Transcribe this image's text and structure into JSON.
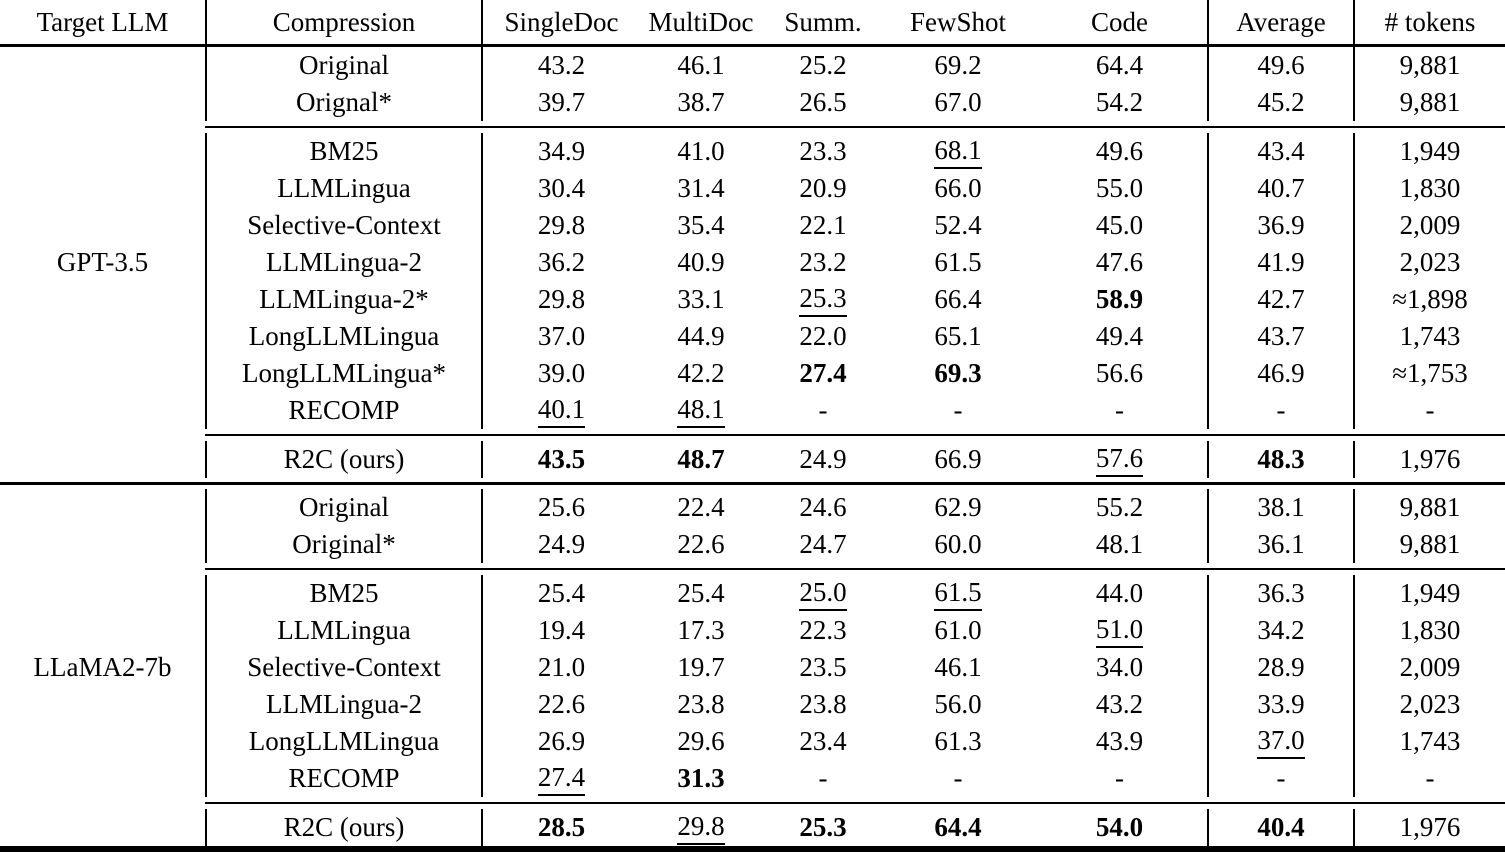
{
  "table": {
    "columns": [
      "Target LLM",
      "Compression",
      "SingleDoc",
      "MultiDoc",
      "Summ.",
      "FewShot",
      "Code",
      "Average",
      "# tokens"
    ],
    "sections": [
      {
        "target_llm": "GPT-3.5",
        "groups": [
          {
            "rows": [
              {
                "method": "Original",
                "values": [
                  "43.2",
                  "46.1",
                  "25.2",
                  "69.2",
                  "64.4",
                  "49.6",
                  "9,881"
                ],
                "styles": {}
              },
              {
                "method": "Orignal*",
                "values": [
                  "39.7",
                  "38.7",
                  "26.5",
                  "67.0",
                  "54.2",
                  "45.2",
                  "9,881"
                ],
                "styles": {}
              }
            ]
          },
          {
            "rows": [
              {
                "method": "BM25",
                "values": [
                  "34.9",
                  "41.0",
                  "23.3",
                  "68.1",
                  "49.6",
                  "43.4",
                  "1,949"
                ],
                "styles": {
                  "3": "u"
                }
              },
              {
                "method": "LLMLingua",
                "values": [
                  "30.4",
                  "31.4",
                  "20.9",
                  "66.0",
                  "55.0",
                  "40.7",
                  "1,830"
                ],
                "styles": {}
              },
              {
                "method": "Selective-Context",
                "values": [
                  "29.8",
                  "35.4",
                  "22.1",
                  "52.4",
                  "45.0",
                  "36.9",
                  "2,009"
                ],
                "styles": {}
              },
              {
                "method": "LLMLingua-2",
                "values": [
                  "36.2",
                  "40.9",
                  "23.2",
                  "61.5",
                  "47.6",
                  "41.9",
                  "2,023"
                ],
                "styles": {}
              },
              {
                "method": "LLMLingua-2*",
                "values": [
                  "29.8",
                  "33.1",
                  "25.3",
                  "66.4",
                  "58.9",
                  "42.7",
                  "≈1,898"
                ],
                "styles": {
                  "2": "u",
                  "4": "b"
                }
              },
              {
                "method": "LongLLMLingua",
                "values": [
                  "37.0",
                  "44.9",
                  "22.0",
                  "65.1",
                  "49.4",
                  "43.7",
                  "1,743"
                ],
                "styles": {}
              },
              {
                "method": "LongLLMLingua*",
                "values": [
                  "39.0",
                  "42.2",
                  "27.4",
                  "69.3",
                  "56.6",
                  "46.9",
                  "≈1,753"
                ],
                "styles": {
                  "2": "b",
                  "3": "b"
                }
              },
              {
                "method": "RECOMP",
                "values": [
                  "40.1",
                  "48.1",
                  "-",
                  "-",
                  "-",
                  "-",
                  "-"
                ],
                "styles": {
                  "0": "u",
                  "1": "u"
                }
              }
            ]
          },
          {
            "rows": [
              {
                "method": "R2C (ours)",
                "values": [
                  "43.5",
                  "48.7",
                  "24.9",
                  "66.9",
                  "57.6",
                  "48.3",
                  "1,976"
                ],
                "styles": {
                  "0": "b",
                  "1": "b",
                  "4": "u",
                  "5": "b"
                }
              }
            ]
          }
        ]
      },
      {
        "target_llm": "LLaMA2-7b",
        "groups": [
          {
            "rows": [
              {
                "method": "Original",
                "values": [
                  "25.6",
                  "22.4",
                  "24.6",
                  "62.9",
                  "55.2",
                  "38.1",
                  "9,881"
                ],
                "styles": {}
              },
              {
                "method": "Original*",
                "values": [
                  "24.9",
                  "22.6",
                  "24.7",
                  "60.0",
                  "48.1",
                  "36.1",
                  "9,881"
                ],
                "styles": {}
              }
            ]
          },
          {
            "rows": [
              {
                "method": "BM25",
                "values": [
                  "25.4",
                  "25.4",
                  "25.0",
                  "61.5",
                  "44.0",
                  "36.3",
                  "1,949"
                ],
                "styles": {
                  "2": "u",
                  "3": "u"
                }
              },
              {
                "method": "LLMLingua",
                "values": [
                  "19.4",
                  "17.3",
                  "22.3",
                  "61.0",
                  "51.0",
                  "34.2",
                  "1,830"
                ],
                "styles": {
                  "4": "u"
                }
              },
              {
                "method": "Selective-Context",
                "values": [
                  "21.0",
                  "19.7",
                  "23.5",
                  "46.1",
                  "34.0",
                  "28.9",
                  "2,009"
                ],
                "styles": {}
              },
              {
                "method": "LLMLingua-2",
                "values": [
                  "22.6",
                  "23.8",
                  "23.8",
                  "56.0",
                  "43.2",
                  "33.9",
                  "2,023"
                ],
                "styles": {}
              },
              {
                "method": "LongLLMLingua",
                "values": [
                  "26.9",
                  "29.6",
                  "23.4",
                  "61.3",
                  "43.9",
                  "37.0",
                  "1,743"
                ],
                "styles": {
                  "5": "u"
                }
              },
              {
                "method": "RECOMP",
                "values": [
                  "27.4",
                  "31.3",
                  "-",
                  "-",
                  "-",
                  "-",
                  "-"
                ],
                "styles": {
                  "0": "u",
                  "1": "b"
                }
              }
            ]
          },
          {
            "rows": [
              {
                "method": "R2C (ours)",
                "values": [
                  "28.5",
                  "29.8",
                  "25.3",
                  "64.4",
                  "54.0",
                  "40.4",
                  "1,976"
                ],
                "styles": {
                  "0": "b",
                  "1": "u",
                  "2": "b",
                  "3": "b",
                  "4": "b",
                  "5": "b"
                }
              }
            ]
          }
        ]
      }
    ]
  }
}
